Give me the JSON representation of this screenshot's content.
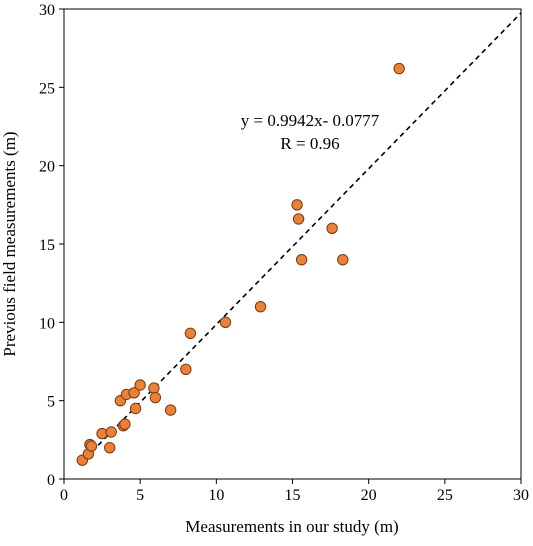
{
  "chart_data": {
    "type": "scatter",
    "title": "",
    "xlabel": "Measurements in our study (m)",
    "ylabel": "Previous field measurements (m)",
    "xlim": [
      0,
      30
    ],
    "ylim": [
      0,
      30
    ],
    "xticks": [
      "0",
      "5",
      "10",
      "15",
      "20",
      "25",
      "30"
    ],
    "yticks": [
      "0",
      "5",
      "10",
      "15",
      "20",
      "25",
      "30"
    ],
    "grid": false,
    "legend": "none",
    "marker_color": "#E8823A",
    "marker_edge_color": "#7A3A10",
    "annotations": {
      "equation": "y = 0.9942x- 0.0777",
      "r_value": "R = 0.96"
    },
    "trendline": {
      "slope": 0.9942,
      "intercept": -0.0777,
      "style": "dashed",
      "color": "#000000"
    },
    "points": [
      {
        "x": 1.2,
        "y": 1.2
      },
      {
        "x": 1.6,
        "y": 1.6
      },
      {
        "x": 1.7,
        "y": 2.2
      },
      {
        "x": 1.8,
        "y": 2.1
      },
      {
        "x": 2.5,
        "y": 2.9
      },
      {
        "x": 3.1,
        "y": 3.0
      },
      {
        "x": 3.0,
        "y": 2.0
      },
      {
        "x": 3.7,
        "y": 5.0
      },
      {
        "x": 3.9,
        "y": 3.4
      },
      {
        "x": 4.0,
        "y": 3.5
      },
      {
        "x": 4.1,
        "y": 5.4
      },
      {
        "x": 4.6,
        "y": 5.5
      },
      {
        "x": 4.7,
        "y": 4.5
      },
      {
        "x": 5.0,
        "y": 6.0
      },
      {
        "x": 5.9,
        "y": 5.8
      },
      {
        "x": 6.0,
        "y": 5.2
      },
      {
        "x": 7.0,
        "y": 4.4
      },
      {
        "x": 8.0,
        "y": 7.0
      },
      {
        "x": 8.3,
        "y": 9.3
      },
      {
        "x": 10.6,
        "y": 10.0
      },
      {
        "x": 12.9,
        "y": 11.0
      },
      {
        "x": 15.3,
        "y": 17.5
      },
      {
        "x": 15.4,
        "y": 16.6
      },
      {
        "x": 15.6,
        "y": 14.0
      },
      {
        "x": 17.6,
        "y": 16.0
      },
      {
        "x": 18.3,
        "y": 14.0
      },
      {
        "x": 22.0,
        "y": 26.2
      }
    ]
  }
}
